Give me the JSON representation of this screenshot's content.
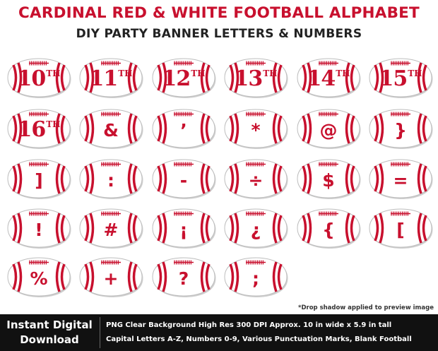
{
  "header": {
    "title": "CARDINAL RED & WHITE FOOTBALL ALPHABET",
    "subtitle": "DIY PARTY BANNER LETTERS & NUMBERS"
  },
  "colors": {
    "accent": "#c8102e",
    "ball_fill": "#ffffff",
    "footer_bg": "#111111"
  },
  "footballs": [
    {
      "text": "10",
      "sup": "TH"
    },
    {
      "text": "11",
      "sup": "TH"
    },
    {
      "text": "12",
      "sup": "TH"
    },
    {
      "text": "13",
      "sup": "TH"
    },
    {
      "text": "14",
      "sup": "TH"
    },
    {
      "text": "15",
      "sup": "TH"
    },
    {
      "text": "16",
      "sup": "TH"
    },
    {
      "text": "&"
    },
    {
      "text": "’"
    },
    {
      "text": "*"
    },
    {
      "text": "@"
    },
    {
      "text": "}"
    },
    {
      "text": "]"
    },
    {
      "text": ":"
    },
    {
      "text": "-"
    },
    {
      "text": "÷"
    },
    {
      "text": "$"
    },
    {
      "text": "="
    },
    {
      "text": "!"
    },
    {
      "text": "#"
    },
    {
      "text": "¡"
    },
    {
      "text": "¿"
    },
    {
      "text": "{"
    },
    {
      "text": "["
    },
    {
      "text": "%"
    },
    {
      "text": "+"
    },
    {
      "text": "?"
    },
    {
      "text": ";"
    }
  ],
  "note": "*Drop shadow applied to preview image",
  "footer": {
    "left_line1": "Instant Digital",
    "left_line2": "Download",
    "line1": "PNG Clear Background  High Res 300 DPI  Approx. 10 in wide x 5.9 in tall",
    "line2": "Capital  Letters A-Z, Numbers 0-9, Various Punctuation Marks, Blank Football"
  }
}
